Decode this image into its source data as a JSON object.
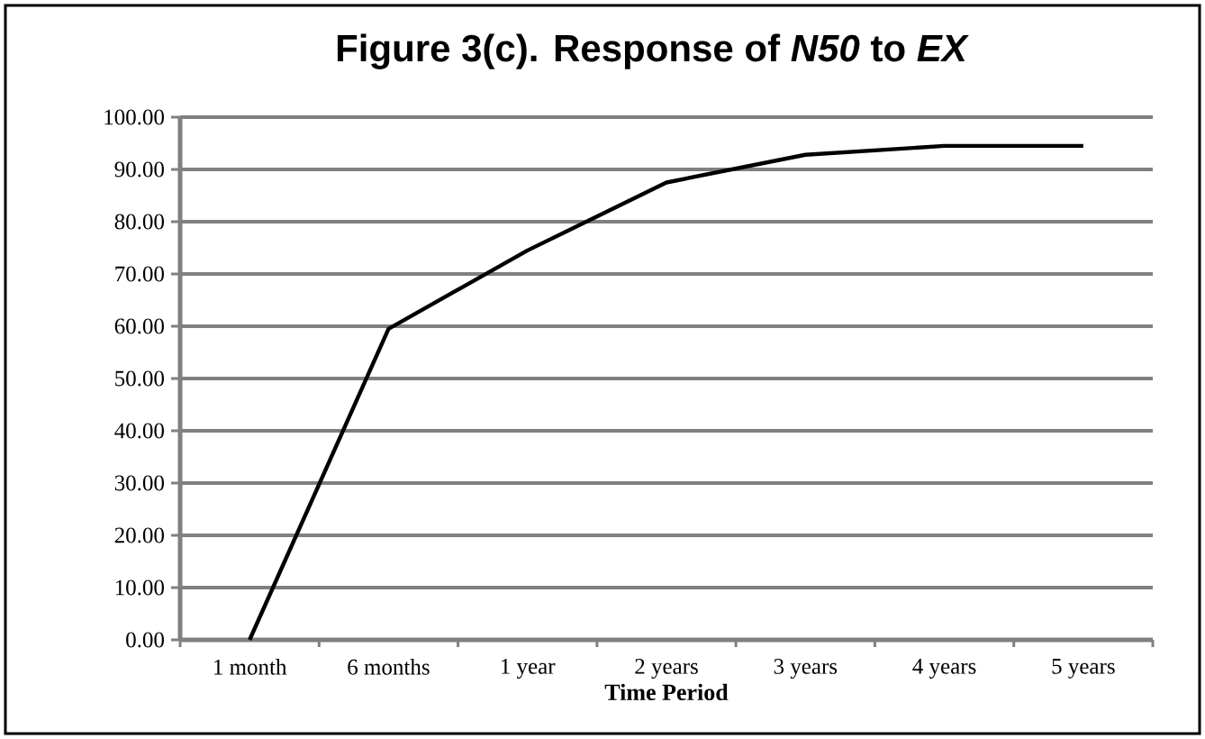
{
  "chart_data": {
    "type": "line",
    "title": "Figure 3(c). Response of *N50* to *EX*",
    "xlabel": "Time Period",
    "categories": [
      "1 month",
      "6 months",
      "1 year",
      "2 years",
      "3 years",
      "4 years",
      "5 years"
    ],
    "series": [
      {
        "color": "#000000",
        "values": [
          0,
          59.5,
          74.5,
          87.5,
          92.8,
          94.5,
          94.5
        ]
      }
    ],
    "ylim": [
      0,
      100
    ],
    "yticks": [
      {
        "value": 0,
        "label": "0.00"
      },
      {
        "value": 10,
        "label": "10.00"
      },
      {
        "value": 20,
        "label": "20.00"
      },
      {
        "value": 30,
        "label": "30.00"
      },
      {
        "value": 40,
        "label": "40.00"
      },
      {
        "value": 50,
        "label": "50.00"
      },
      {
        "value": 60,
        "label": "60.00"
      },
      {
        "value": 70,
        "label": "70.00"
      },
      {
        "value": 80,
        "label": "80.00"
      },
      {
        "value": 90,
        "label": "90.00"
      },
      {
        "value": 100,
        "label": "100.00"
      }
    ],
    "grid": "y",
    "marker": "none",
    "line_style": "solid"
  }
}
